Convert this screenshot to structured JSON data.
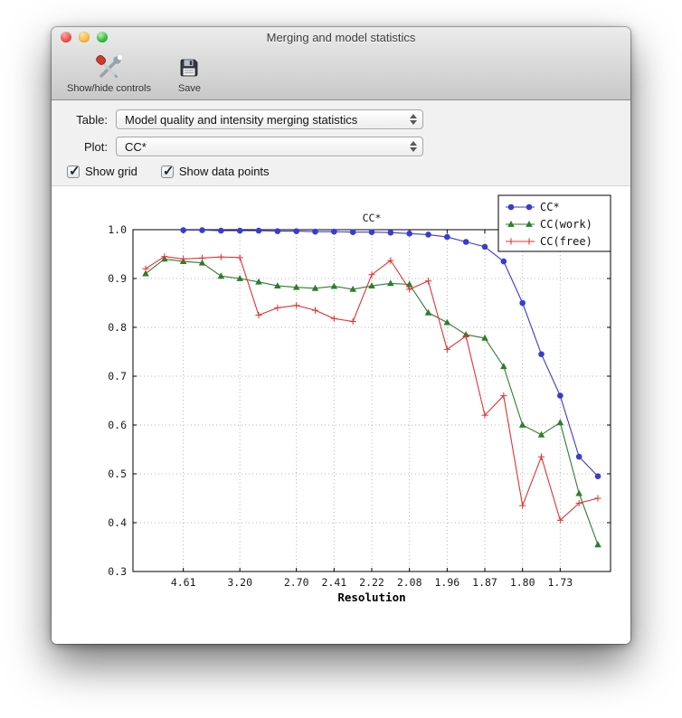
{
  "window": {
    "title": "Merging and model statistics"
  },
  "toolbar": {
    "items": [
      {
        "label": "Show/hide controls",
        "icon": "tools-icon"
      },
      {
        "label": "Save",
        "icon": "save-icon"
      }
    ]
  },
  "controls": {
    "table_label": "Table:",
    "table_value": "Model quality and intensity merging statistics",
    "plot_label": "Plot:",
    "plot_value": "CC*",
    "checkboxes": [
      {
        "label": "Show grid",
        "checked": true
      },
      {
        "label": "Show data points",
        "checked": true
      }
    ]
  },
  "chart_data": {
    "type": "line",
    "title": "CC*",
    "xlabel": "Resolution",
    "ylabel": "",
    "ylim": [
      0.3,
      1.0
    ],
    "yticks": [
      0.3,
      0.4,
      0.5,
      0.6,
      0.7,
      0.8,
      0.9,
      1.0
    ],
    "x_bins": 25,
    "xtick_positions": [
      2,
      5,
      8,
      10,
      12,
      14,
      16,
      18,
      20,
      22
    ],
    "xtick_labels": [
      "4.61",
      "3.20",
      "2.70",
      "2.41",
      "2.22",
      "2.08",
      "1.96",
      "1.87",
      "1.80",
      "1.73"
    ],
    "grid": true,
    "show_data_points": true,
    "legend_position": "upper right",
    "series": [
      {
        "name": "CC*",
        "color": "#3b3bd1",
        "marker": "circle",
        "values": [
          null,
          null,
          0.999,
          0.999,
          0.998,
          0.998,
          0.998,
          0.997,
          0.997,
          0.996,
          0.996,
          0.995,
          0.995,
          0.994,
          0.992,
          0.99,
          0.985,
          0.975,
          0.965,
          0.935,
          0.85,
          0.745,
          0.66,
          0.535,
          0.495
        ]
      },
      {
        "name": "CC(work)",
        "color": "#2e7d2e",
        "marker": "triangle",
        "values": [
          0.91,
          0.94,
          0.935,
          0.932,
          0.905,
          0.9,
          0.893,
          0.885,
          0.882,
          0.88,
          0.884,
          0.878,
          0.885,
          0.89,
          0.888,
          0.83,
          0.81,
          0.785,
          0.778,
          0.72,
          0.6,
          0.58,
          0.605,
          0.46,
          0.355
        ]
      },
      {
        "name": "CC(free)",
        "color": "#e03232",
        "marker": "plus",
        "values": [
          0.92,
          0.945,
          0.94,
          0.942,
          0.944,
          0.943,
          0.825,
          0.84,
          0.845,
          0.835,
          0.818,
          0.812,
          0.908,
          0.937,
          0.878,
          0.895,
          0.755,
          0.782,
          0.62,
          0.66,
          0.435,
          0.535,
          0.405,
          0.44,
          0.45
        ]
      }
    ]
  }
}
